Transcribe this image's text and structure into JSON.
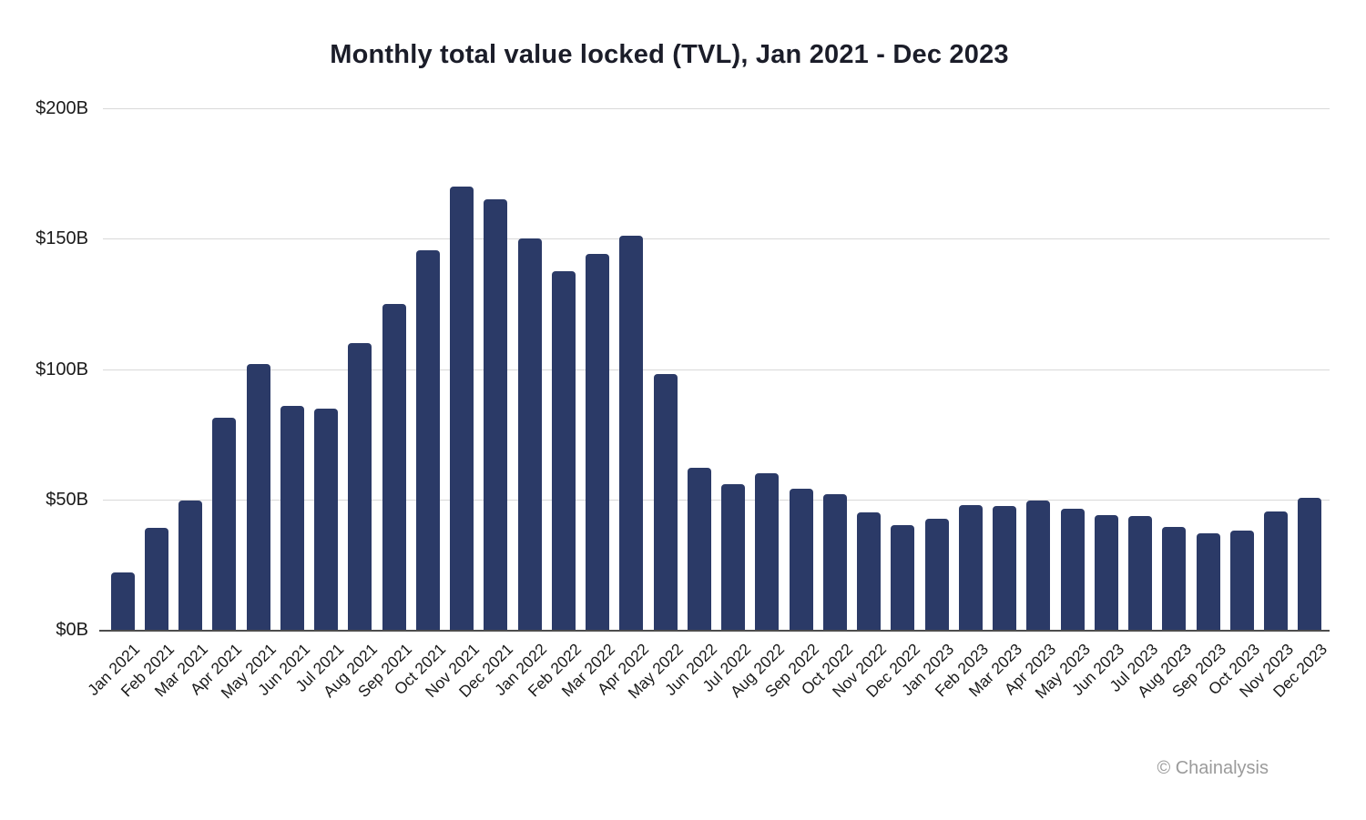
{
  "page": {
    "title": "Monthly total value locked (TVL), Jan 2021 - Dec 2023"
  },
  "footer": {
    "attribution": "© Chainalysis"
  },
  "colors": {
    "bar": "#2b3a67",
    "gridline": "#d9d9d9",
    "axis_line": "#4d4d4d",
    "title_text": "#1b1d29",
    "tick_text": "#1a1a1a",
    "attribution_text": "#9b9b9b"
  },
  "chart_data": {
    "type": "bar",
    "title": "Monthly total value locked (TVL), Jan 2021 - Dec 2023",
    "xlabel": "",
    "ylabel": "",
    "ylim": [
      0,
      200
    ],
    "grid": "horizontal",
    "legend": "none",
    "yticks": [
      {
        "label": "$0B",
        "value": 0
      },
      {
        "label": "$50B",
        "value": 50
      },
      {
        "label": "$100B",
        "value": 100
      },
      {
        "label": "$150B",
        "value": 150
      },
      {
        "label": "$200B",
        "value": 200
      }
    ],
    "categories": [
      "Jan 2021",
      "Feb 2021",
      "Mar 2021",
      "Apr 2021",
      "May 2021",
      "Jun 2021",
      "Jul 2021",
      "Aug 2021",
      "Sep 2021",
      "Oct 2021",
      "Nov 2021",
      "Dec 2021",
      "Jan 2022",
      "Feb 2022",
      "Mar 2022",
      "Apr 2022",
      "May 2022",
      "Jun 2022",
      "Jul 2022",
      "Aug 2022",
      "Sep 2022",
      "Oct 2022",
      "Nov 2022",
      "Dec 2022",
      "Jan 2023",
      "Feb 2023",
      "Mar 2023",
      "Apr 2023",
      "May 2023",
      "Jun 2023",
      "Jul 2023",
      "Aug 2023",
      "Sep 2023",
      "Oct 2023",
      "Nov 2023",
      "Dec 2023"
    ],
    "values": [
      22,
      39,
      49.5,
      81.5,
      102,
      86,
      85,
      110,
      125,
      145.5,
      170,
      165,
      150,
      137.5,
      144,
      151,
      98,
      62,
      56,
      60,
      54,
      52,
      45,
      40,
      42.5,
      48,
      47.5,
      49.5,
      46.5,
      44,
      43.5,
      39.5,
      37,
      38,
      45.5,
      50.5
    ]
  }
}
